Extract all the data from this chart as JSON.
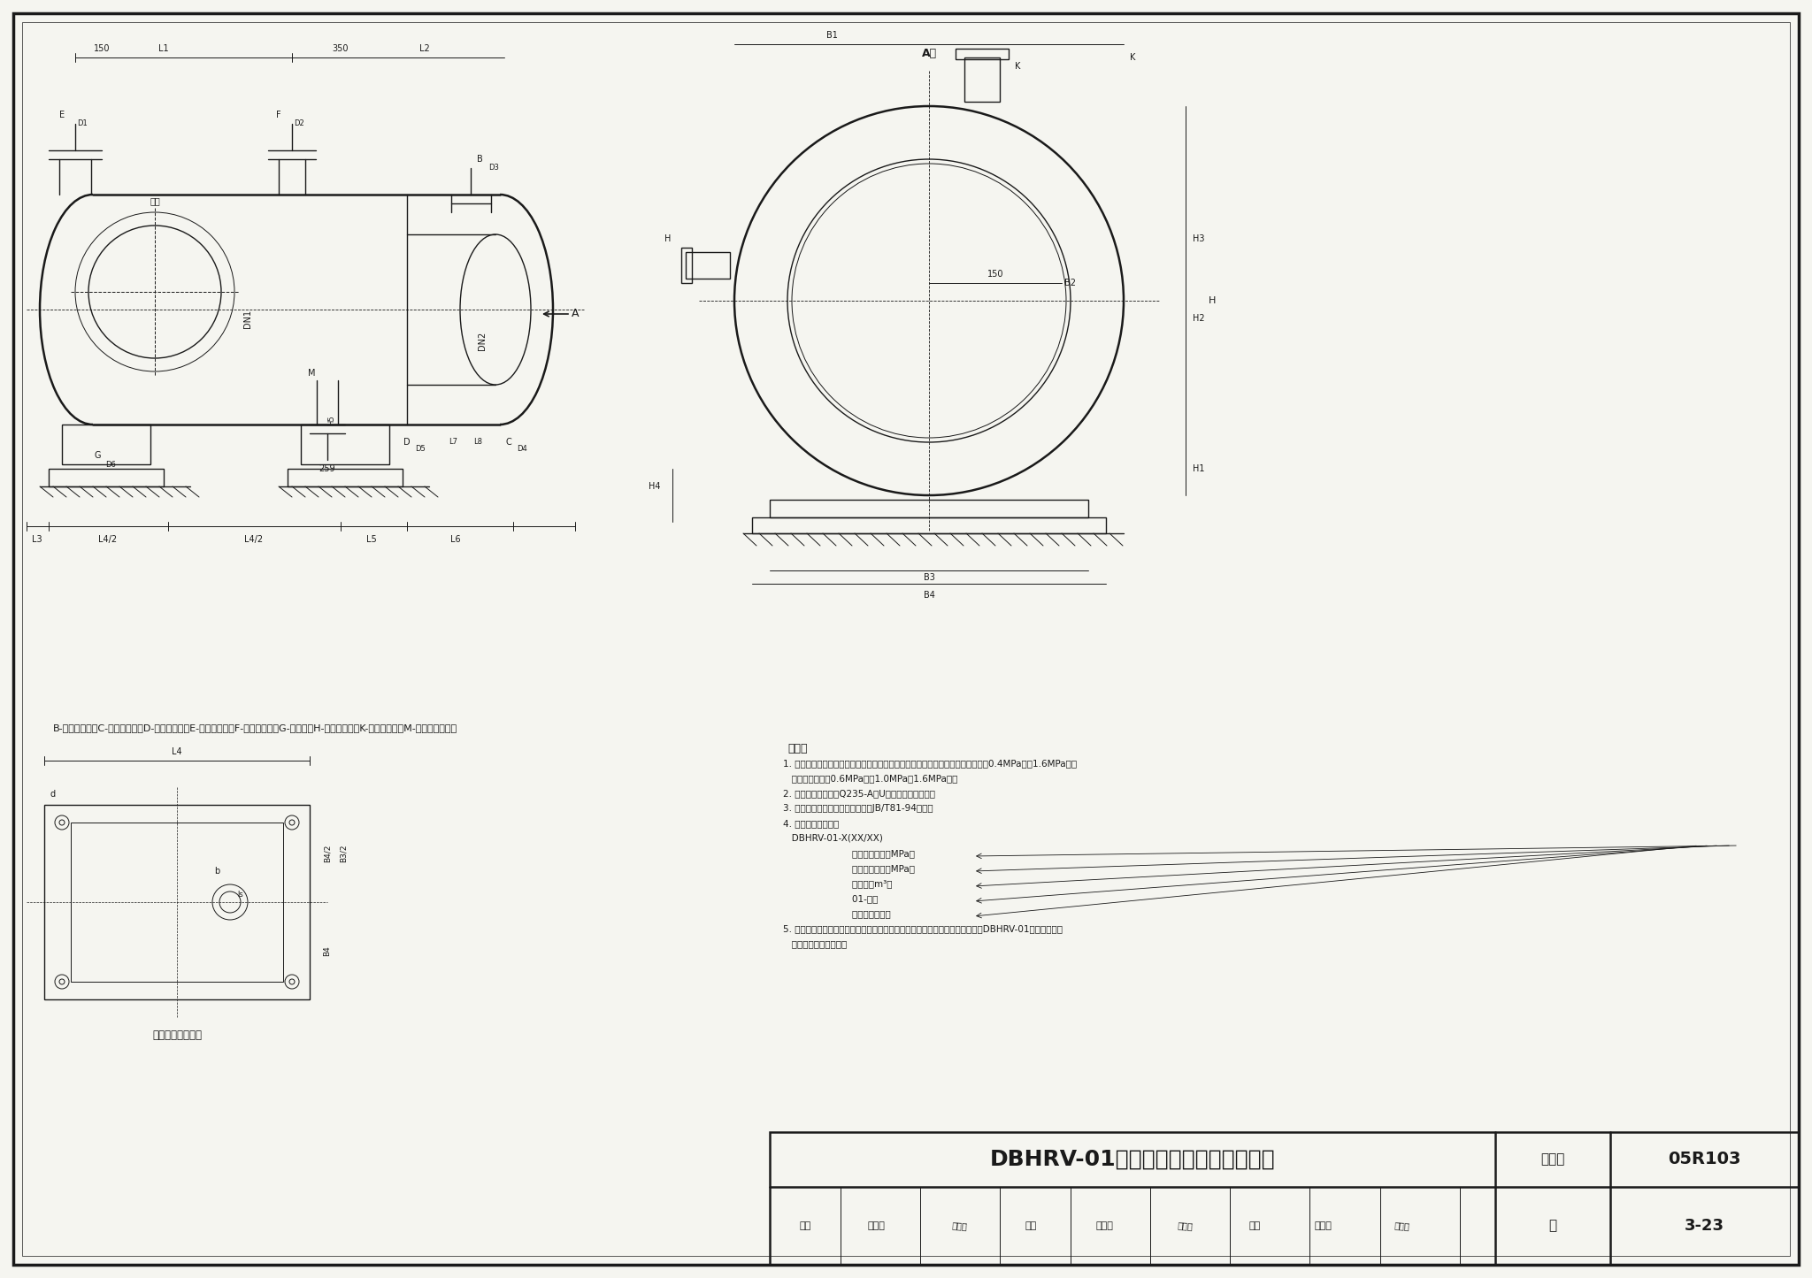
{
  "bg_color": "#f5f5f0",
  "line_color": "#1a1a1a",
  "title_main": "DBHRV-01系列半容积式换热器安装图",
  "atlas_label": "图集号",
  "atlas_value": "05R103",
  "page_label": "页",
  "page_value": "3-23",
  "review_label": "审核",
  "review_name": "牛小化",
  "check_label": "校对",
  "check_name": "郭青志",
  "design_label": "设计",
  "design_name": "朱国升",
  "caption_label": "B-热媒入口管；C-热媒出口管；D-冷水进水管；E-热水出水管；F-安全阀接管；G-排污管；H-压力表接管；K-温度计接管；M-温度调节器接管",
  "note_title": "说明：",
  "notes": [
    "1．适用范围：用于热水供应系统．热介质为蒸汽或高温水，换热器管程工作压力为0.4MPa（或1.6MPa），壳程工作压力为0.6MPa（或1.0MPa、1.6MPa）。",
    "2．换热器壳体材料为Q235-A，U型管材料为紫铜管。",
    "3．管道与换热器连接处的法兰盘按JB/T81-94配制。",
    "4．换热器编号说明：",
    "    DBHRV-01-X(XX/XX)",
    "        壳程设计压力（MPa）",
    "        管程设计压力（MPa）",
    "        总容积（m³）",
    "        01-卧式",
    "        半容积式换热器",
    "5．本图依据河北深州金属结构热力设备有限公司及北京市伟业供热设备有限公司DBHRV-01系列半容积式换热器技术资料编制。"
  ],
  "bottom_label": "鞍式支座底板平面",
  "view_label": "A向"
}
